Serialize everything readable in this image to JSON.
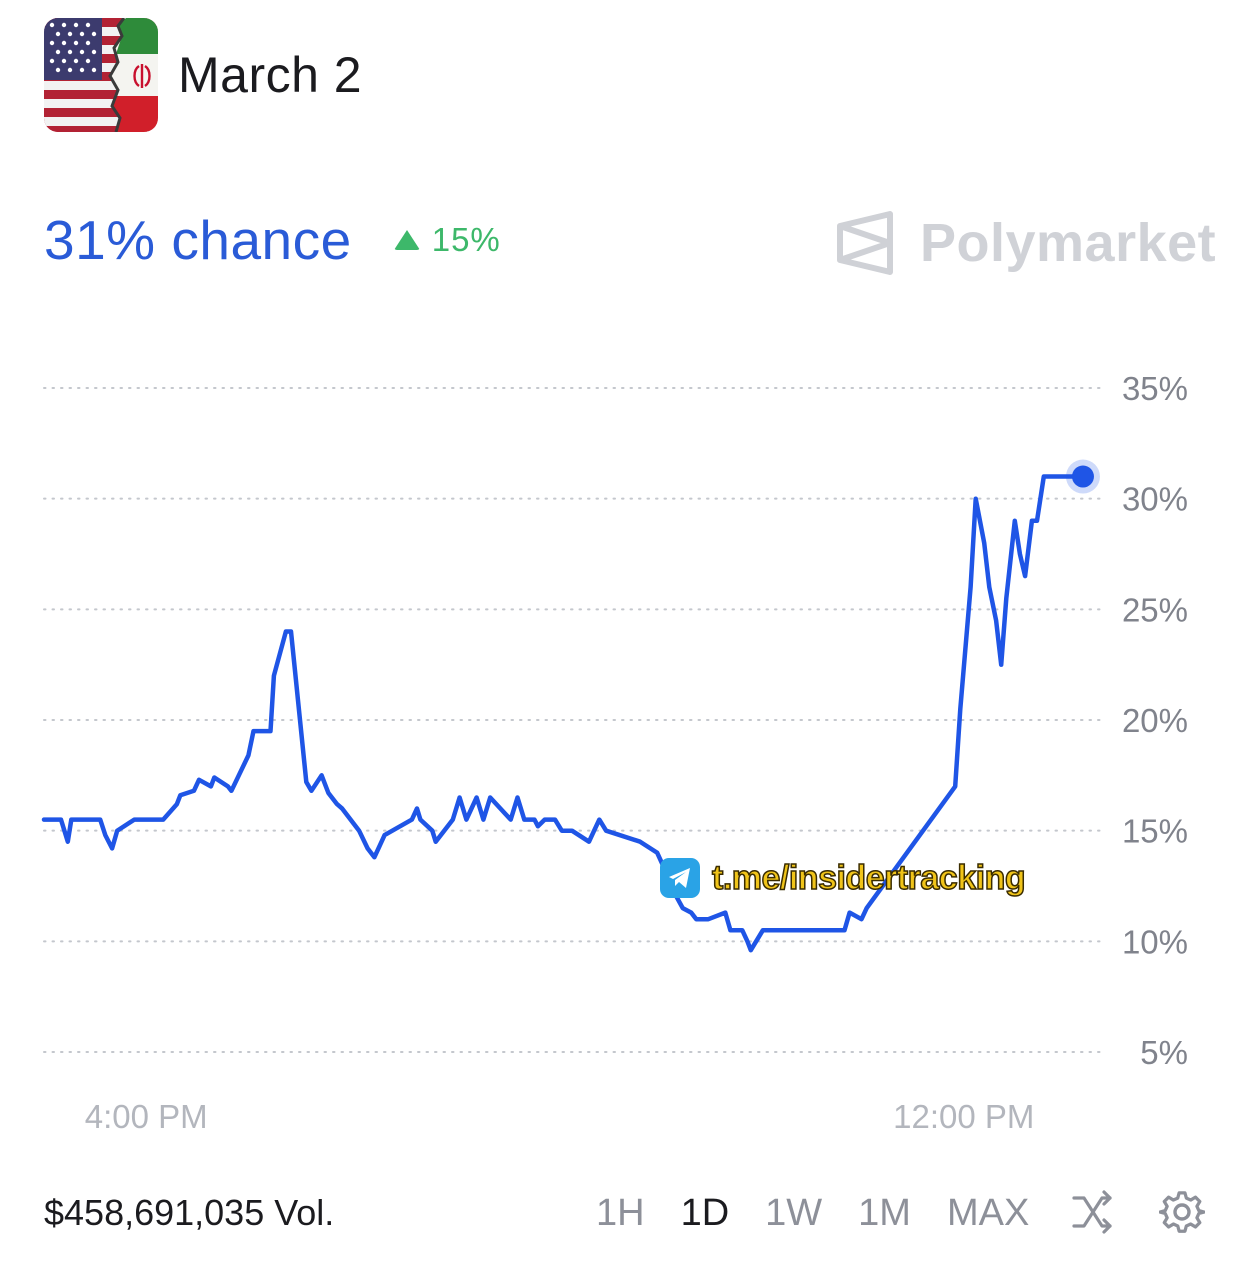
{
  "header": {
    "title": "March 2",
    "flag_icon": "us-iran-flag-icon"
  },
  "summary": {
    "chance": "31% chance",
    "change": "15%",
    "change_direction": "up",
    "brand": "Polymarket"
  },
  "colors": {
    "accent": "#2a5bd7",
    "positive": "#3db86a",
    "line": "#1f55e6",
    "muted": "#8d9099"
  },
  "watermark": {
    "text": "t.me/insidertracking",
    "icon": "telegram-icon"
  },
  "chart_data": {
    "type": "line",
    "ylim": [
      5,
      35
    ],
    "y_ticks": [
      35,
      30,
      25,
      20,
      15,
      10,
      5
    ],
    "y_tick_labels": [
      "35%",
      "30%",
      "25%",
      "20%",
      "15%",
      "10%",
      "5%"
    ],
    "x_tick_labels": [
      "4:00 PM",
      "12:00 PM"
    ],
    "x_tick_positions": [
      6,
      54
    ],
    "xlim": [
      0,
      62
    ],
    "grid": true,
    "series": [
      {
        "x": [
          0,
          1,
          1.4,
          1.6,
          2.0,
          3.3,
          3.6,
          4.0,
          4.3,
          5.3,
          7.0,
          7.8,
          8.0,
          8.8,
          9.1,
          9.8,
          10.0,
          10.8,
          11.0,
          12.0,
          12.3,
          13.3,
          13.5,
          14.2,
          14.5,
          15.4,
          15.7,
          16.3,
          16.7,
          17.2,
          17.5,
          18.5,
          19.0,
          19.4,
          20.0,
          21.6,
          21.9,
          22.1,
          22.8,
          23.0,
          24.0,
          24.4,
          24.8,
          25.4,
          25.8,
          26.2,
          27.4,
          27.8,
          28.2,
          28.8,
          29.0,
          29.4,
          30.0,
          30.4,
          31.0,
          32.0,
          32.3,
          32.6,
          33.0,
          35.0,
          36.0,
          36.3,
          37.0,
          37.5,
          38.0,
          38.3,
          39.0,
          40.0,
          40.3,
          41.0,
          41.3,
          41.5,
          42.2,
          43.0,
          43.8,
          44.5,
          45.2,
          45.5,
          46.5,
          47.0,
          47.3,
          48.0,
          48.3,
          53.5,
          53.8,
          54.4,
          54.7,
          55.2,
          55.5,
          55.9,
          56.2,
          56.5,
          57.0,
          57.3,
          57.6,
          58.0,
          58.3,
          58.7,
          59.0,
          59.3,
          59.6,
          60.0,
          60.3,
          60.5,
          60.8,
          61.0
        ],
        "y": [
          15.5,
          15.5,
          14.5,
          15.5,
          15.5,
          15.5,
          14.8,
          14.2,
          15.0,
          15.5,
          15.5,
          16.2,
          16.6,
          16.8,
          17.3,
          17.0,
          17.4,
          17.0,
          16.8,
          18.4,
          19.5,
          19.5,
          22.0,
          24.0,
          24.0,
          17.2,
          16.8,
          17.5,
          16.7,
          16.2,
          16.0,
          15.0,
          14.2,
          13.8,
          14.8,
          15.5,
          16.0,
          15.5,
          15.0,
          14.5,
          15.5,
          16.5,
          15.5,
          16.5,
          15.5,
          16.5,
          15.5,
          16.5,
          15.5,
          15.5,
          15.2,
          15.5,
          15.5,
          15.0,
          15.0,
          14.5,
          15.0,
          15.5,
          15.0,
          14.5,
          14.0,
          13.5,
          12.2,
          11.5,
          11.3,
          11.0,
          11.0,
          11.3,
          10.5,
          10.5,
          10.0,
          9.6,
          10.5,
          10.5,
          10.5,
          10.5,
          10.5,
          10.5,
          10.5,
          10.5,
          11.3,
          11.0,
          11.5,
          17.0,
          20.5,
          26.0,
          30.0,
          28.0,
          26.0,
          24.5,
          22.5,
          25.5,
          29.0,
          27.5,
          26.5,
          29.0,
          29.0,
          31.0,
          31.0,
          31.0,
          31.0,
          31.0,
          31.0,
          31.0,
          31.0,
          31.0
        ]
      }
    ],
    "last_value": 31
  },
  "footer": {
    "volume": "$458,691,035 Vol.",
    "ranges": [
      "1H",
      "1D",
      "1W",
      "1M",
      "MAX"
    ],
    "active_range": "1D",
    "shuffle_icon": "shuffle-icon",
    "settings_icon": "gear-icon"
  }
}
